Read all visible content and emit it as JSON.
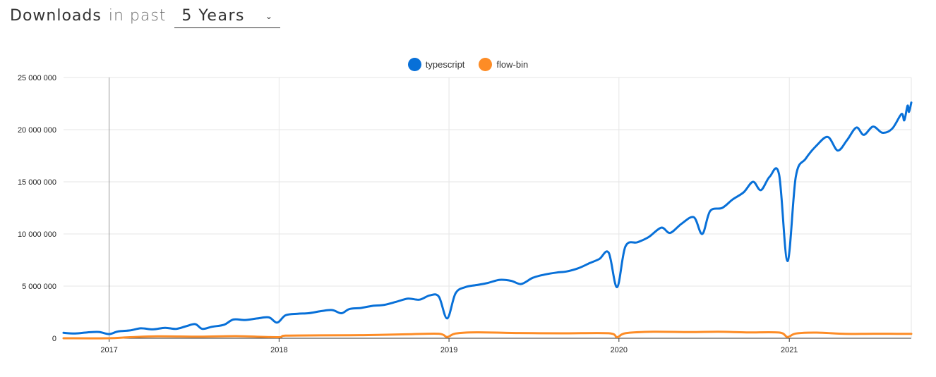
{
  "header": {
    "title": "Downloads",
    "subtitle": "in past",
    "period_selected": "5 Years"
  },
  "colors": {
    "typescript": "#0870d8",
    "flow_bin": "#fd8c26",
    "grid": "#e6e6e6"
  },
  "chart_data": {
    "type": "line",
    "title": "",
    "xlabel": "",
    "ylabel": "",
    "ylim": [
      0,
      25000000
    ],
    "xlim": [
      "2016-09-25",
      "2021-09-20"
    ],
    "yticks": [
      0,
      5000000,
      10000000,
      15000000,
      20000000,
      25000000
    ],
    "ytick_labels": [
      "0",
      "5 000 000",
      "10 000 000",
      "15 000 000",
      "20 000 000",
      "25 000 000"
    ],
    "xtick_labels": [
      "2017",
      "2018",
      "2019",
      "2020",
      "2021"
    ],
    "xtick_dates": [
      "2017-01-01",
      "2018-01-01",
      "2019-01-01",
      "2020-01-01",
      "2021-01-01"
    ],
    "grid": true,
    "legend_position": "top-center",
    "series": [
      {
        "name": "typescript",
        "points": [
          [
            "2016-09-25",
            520000
          ],
          [
            "2016-10-20",
            460000
          ],
          [
            "2016-11-15",
            560000
          ],
          [
            "2016-12-10",
            600000
          ],
          [
            "2017-01-01",
            400000
          ],
          [
            "2017-01-20",
            650000
          ],
          [
            "2017-02-15",
            750000
          ],
          [
            "2017-03-10",
            950000
          ],
          [
            "2017-04-05",
            850000
          ],
          [
            "2017-05-01",
            1000000
          ],
          [
            "2017-05-25",
            900000
          ],
          [
            "2017-06-15",
            1150000
          ],
          [
            "2017-07-05",
            1350000
          ],
          [
            "2017-07-20",
            900000
          ],
          [
            "2017-08-10",
            1100000
          ],
          [
            "2017-09-05",
            1300000
          ],
          [
            "2017-09-25",
            1800000
          ],
          [
            "2017-10-20",
            1750000
          ],
          [
            "2017-11-15",
            1900000
          ],
          [
            "2017-12-10",
            2000000
          ],
          [
            "2017-12-28",
            1500000
          ],
          [
            "2018-01-15",
            2200000
          ],
          [
            "2018-02-10",
            2350000
          ],
          [
            "2018-03-05",
            2400000
          ],
          [
            "2018-04-01",
            2600000
          ],
          [
            "2018-04-25",
            2700000
          ],
          [
            "2018-05-15",
            2400000
          ],
          [
            "2018-06-01",
            2800000
          ],
          [
            "2018-06-25",
            2900000
          ],
          [
            "2018-07-20",
            3100000
          ],
          [
            "2018-08-15",
            3200000
          ],
          [
            "2018-09-10",
            3500000
          ],
          [
            "2018-10-05",
            3800000
          ],
          [
            "2018-10-30",
            3700000
          ],
          [
            "2018-11-20",
            4100000
          ],
          [
            "2018-12-10",
            4000000
          ],
          [
            "2018-12-28",
            1900000
          ],
          [
            "2019-01-15",
            4300000
          ],
          [
            "2019-02-05",
            4900000
          ],
          [
            "2019-03-01",
            5100000
          ],
          [
            "2019-03-25",
            5300000
          ],
          [
            "2019-04-20",
            5600000
          ],
          [
            "2019-05-15",
            5500000
          ],
          [
            "2019-06-05",
            5200000
          ],
          [
            "2019-06-30",
            5800000
          ],
          [
            "2019-07-25",
            6100000
          ],
          [
            "2019-08-20",
            6300000
          ],
          [
            "2019-09-10",
            6400000
          ],
          [
            "2019-10-05",
            6700000
          ],
          [
            "2019-10-30",
            7200000
          ],
          [
            "2019-11-20",
            7600000
          ],
          [
            "2019-12-10",
            8200000
          ],
          [
            "2019-12-28",
            4900000
          ],
          [
            "2020-01-15",
            8800000
          ],
          [
            "2020-02-10",
            9200000
          ],
          [
            "2020-03-05",
            9700000
          ],
          [
            "2020-04-01",
            10600000
          ],
          [
            "2020-04-20",
            10100000
          ],
          [
            "2020-05-15",
            11000000
          ],
          [
            "2020-06-10",
            11600000
          ],
          [
            "2020-06-28",
            10000000
          ],
          [
            "2020-07-15",
            12200000
          ],
          [
            "2020-08-10",
            12500000
          ],
          [
            "2020-09-01",
            13300000
          ],
          [
            "2020-09-25",
            14000000
          ],
          [
            "2020-10-15",
            15000000
          ],
          [
            "2020-11-01",
            14200000
          ],
          [
            "2020-11-20",
            15500000
          ],
          [
            "2020-12-10",
            15700000
          ],
          [
            "2020-12-28",
            7400000
          ],
          [
            "2021-01-15",
            15500000
          ],
          [
            "2021-02-05",
            17200000
          ],
          [
            "2021-03-01",
            18500000
          ],
          [
            "2021-03-25",
            19300000
          ],
          [
            "2021-04-15",
            18000000
          ],
          [
            "2021-05-05",
            19000000
          ],
          [
            "2021-05-25",
            20200000
          ],
          [
            "2021-06-10",
            19500000
          ],
          [
            "2021-06-30",
            20300000
          ],
          [
            "2021-07-20",
            19700000
          ],
          [
            "2021-08-10",
            20100000
          ],
          [
            "2021-08-30",
            21500000
          ],
          [
            "2021-09-05",
            20900000
          ],
          [
            "2021-09-12",
            22300000
          ],
          [
            "2021-09-15",
            21700000
          ],
          [
            "2021-09-20",
            22600000
          ]
        ]
      },
      {
        "name": "flow-bin",
        "points": [
          [
            "2016-09-25",
            0
          ],
          [
            "2016-12-28",
            0
          ],
          [
            "2017-02-15",
            100000
          ],
          [
            "2017-04-15",
            180000
          ],
          [
            "2017-07-15",
            150000
          ],
          [
            "2017-10-01",
            200000
          ],
          [
            "2017-12-28",
            100000
          ],
          [
            "2018-01-15",
            250000
          ],
          [
            "2018-04-01",
            280000
          ],
          [
            "2018-07-01",
            300000
          ],
          [
            "2018-10-01",
            380000
          ],
          [
            "2018-12-10",
            430000
          ],
          [
            "2018-12-28",
            120000
          ],
          [
            "2019-01-15",
            450000
          ],
          [
            "2019-03-01",
            570000
          ],
          [
            "2019-06-01",
            500000
          ],
          [
            "2019-09-01",
            470000
          ],
          [
            "2019-12-10",
            480000
          ],
          [
            "2019-12-28",
            100000
          ],
          [
            "2020-01-15",
            480000
          ],
          [
            "2020-03-15",
            620000
          ],
          [
            "2020-06-01",
            590000
          ],
          [
            "2020-08-01",
            620000
          ],
          [
            "2020-10-01",
            560000
          ],
          [
            "2020-12-10",
            550000
          ],
          [
            "2020-12-28",
            120000
          ],
          [
            "2021-01-15",
            450000
          ],
          [
            "2021-03-01",
            540000
          ],
          [
            "2021-05-01",
            420000
          ],
          [
            "2021-07-01",
            430000
          ],
          [
            "2021-09-20",
            420000
          ]
        ]
      }
    ]
  }
}
